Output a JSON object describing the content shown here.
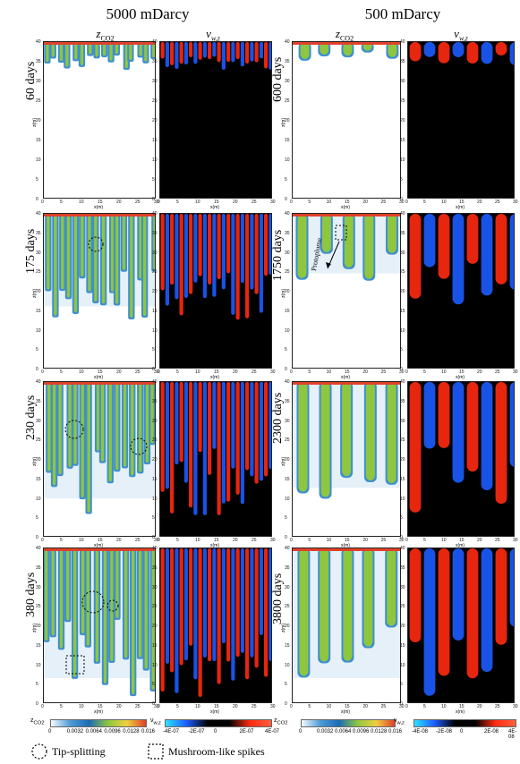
{
  "column_titles": {
    "left": "5000 mDarcy",
    "right": "500 mDarcy"
  },
  "panel_headers": {
    "z": "z",
    "z_sub": "CO2",
    "nu": "ν",
    "nu_sub": "w,z"
  },
  "rows_left": [
    "60 days",
    "175 days",
    "230 days",
    "380 days"
  ],
  "rows_right": [
    "600 days",
    "1750 days",
    "2300 days",
    "3800 days"
  ],
  "axis": {
    "x_label": "x(m)",
    "z_label": "z(m)",
    "x_ticks": [
      "0",
      "5",
      "10",
      "15",
      "20",
      "25",
      "30"
    ],
    "z_ticks": [
      "0",
      "5",
      "10",
      "15",
      "20",
      "25",
      "30",
      "35",
      "40"
    ]
  },
  "annotation": {
    "protoplume": "Protoplume"
  },
  "colorbars": {
    "left_z": {
      "label": "z",
      "label_sub": "CO2",
      "ticks": [
        "0",
        "0.0032",
        "0.0064",
        "0.0096",
        "0.0128",
        "0.016"
      ]
    },
    "left_nu": {
      "label": "ν",
      "label_sub": "w,z",
      "ticks": [
        "-4E-07",
        "-2E-07",
        "0",
        "2E-07",
        "4E-07"
      ]
    },
    "right_z": {
      "label": "z",
      "label_sub": "CO2",
      "ticks": [
        "0",
        "0.0032",
        "0.0064",
        "0.0096",
        "0.0128",
        "0.016"
      ]
    },
    "right_nu": {
      "label": "ν",
      "label_sub": "w,z",
      "ticks": [
        "-4E-08",
        "-2E-08",
        "0",
        "2E-08",
        "4E-08"
      ]
    }
  },
  "legend": {
    "tip": "Tip-splitting",
    "mushroom": "Mushroom-like spikes"
  },
  "colors": {
    "z_low": "#ffffff",
    "z_mid": "#3f8fd0",
    "z_green": "#8ec63f",
    "z_high": "#e0412a",
    "nu_neg": "#1c5cff",
    "nu_pos": "#ff2a10",
    "nu_zero": "#000000"
  }
}
